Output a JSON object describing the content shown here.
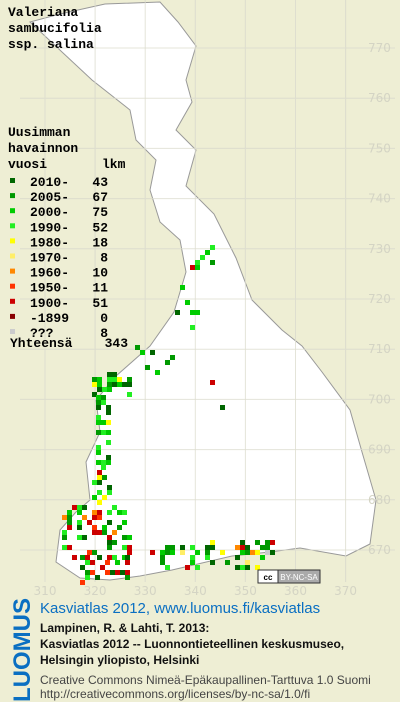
{
  "title": [
    "Valeriana",
    "sambucifolia",
    "ssp. salina"
  ],
  "legend": {
    "header": [
      "Uusimman",
      "havainnon"
    ],
    "col_year": "vuosi",
    "col_count": "lkm",
    "rows": [
      {
        "label": "2010-",
        "count": 43,
        "color": "#006600"
      },
      {
        "label": "2005-",
        "count": 67,
        "color": "#009900"
      },
      {
        "label": "2000-",
        "count": 75,
        "color": "#00cc00"
      },
      {
        "label": "1990-",
        "count": 52,
        "color": "#22ee22"
      },
      {
        "label": "1980-",
        "count": 18,
        "color": "#ffff00"
      },
      {
        "label": "1970-",
        "count": 8,
        "color": "#ffee66"
      },
      {
        "label": "1960-",
        "count": 10,
        "color": "#ff8800"
      },
      {
        "label": "1950-",
        "count": 11,
        "color": "#ff3300"
      },
      {
        "label": "1900-",
        "count": 51,
        "color": "#cc0000"
      },
      {
        "label": "-1899",
        "count": 0,
        "color": "#880000"
      },
      {
        "label": "???",
        "count": 8,
        "color": "#cccccc"
      }
    ],
    "total_label": "Yhteensä",
    "total": 343
  },
  "grid": {
    "northing": [
      770,
      760,
      750,
      740,
      730,
      720,
      710,
      700,
      690,
      680,
      670
    ],
    "easting": [
      310,
      320,
      330,
      340,
      350,
      360,
      370
    ]
  },
  "badge": {
    "cc": "cc",
    "license": "BY-NC-SA"
  },
  "footer": {
    "logo": "LUOMUS",
    "link": "Kasviatlas 2012, www.luomus.fi/kasviatlas",
    "citation": [
      "Lampinen, R. & Lahti, T. 2013:",
      "Kasviatlas 2012 -- Luonnontieteellinen keskusmuseo,",
      "Helsingin yliopisto, Helsinki"
    ],
    "license": [
      "Creative Commons Nimeä-Epäkaupallinen-Tarttuva 1.0 Suomi",
      "http://creativecommons.org/licenses/by-nc-sa/1.0/fi"
    ]
  }
}
